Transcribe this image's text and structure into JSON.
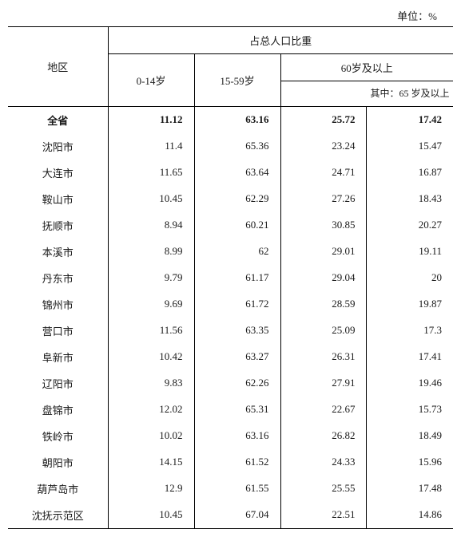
{
  "unit_label": "单位：%",
  "header": {
    "region": "地区",
    "group_title": "占总人口比重",
    "age_0_14": "0-14岁",
    "age_15_59": "15-59岁",
    "age_60_plus": "60岁及以上",
    "sub_65": "其中：65\n岁及以上"
  },
  "rows": [
    {
      "region": "全省",
      "v1": "11.12",
      "v2": "63.16",
      "v3": "25.72",
      "v4": "17.42",
      "total": true
    },
    {
      "region": "沈阳市",
      "v1": "11.4",
      "v2": "65.36",
      "v3": "23.24",
      "v4": "15.47"
    },
    {
      "region": "大连市",
      "v1": "11.65",
      "v2": "63.64",
      "v3": "24.71",
      "v4": "16.87"
    },
    {
      "region": "鞍山市",
      "v1": "10.45",
      "v2": "62.29",
      "v3": "27.26",
      "v4": "18.43"
    },
    {
      "region": "抚顺市",
      "v1": "8.94",
      "v2": "60.21",
      "v3": "30.85",
      "v4": "20.27"
    },
    {
      "region": "本溪市",
      "v1": "8.99",
      "v2": "62",
      "v3": "29.01",
      "v4": "19.11"
    },
    {
      "region": "丹东市",
      "v1": "9.79",
      "v2": "61.17",
      "v3": "29.04",
      "v4": "20"
    },
    {
      "region": "锦州市",
      "v1": "9.69",
      "v2": "61.72",
      "v3": "28.59",
      "v4": "19.87"
    },
    {
      "region": "营口市",
      "v1": "11.56",
      "v2": "63.35",
      "v3": "25.09",
      "v4": "17.3"
    },
    {
      "region": "阜新市",
      "v1": "10.42",
      "v2": "63.27",
      "v3": "26.31",
      "v4": "17.41"
    },
    {
      "region": "辽阳市",
      "v1": "9.83",
      "v2": "62.26",
      "v3": "27.91",
      "v4": "19.46"
    },
    {
      "region": "盘锦市",
      "v1": "12.02",
      "v2": "65.31",
      "v3": "22.67",
      "v4": "15.73"
    },
    {
      "region": "铁岭市",
      "v1": "10.02",
      "v2": "63.16",
      "v3": "26.82",
      "v4": "18.49"
    },
    {
      "region": "朝阳市",
      "v1": "14.15",
      "v2": "61.52",
      "v3": "24.33",
      "v4": "15.96"
    },
    {
      "region": "葫芦岛市",
      "v1": "12.9",
      "v2": "61.55",
      "v3": "25.55",
      "v4": "17.48"
    },
    {
      "region": "沈抚示范区",
      "v1": "10.45",
      "v2": "67.04",
      "v3": "22.51",
      "v4": "14.86"
    }
  ]
}
